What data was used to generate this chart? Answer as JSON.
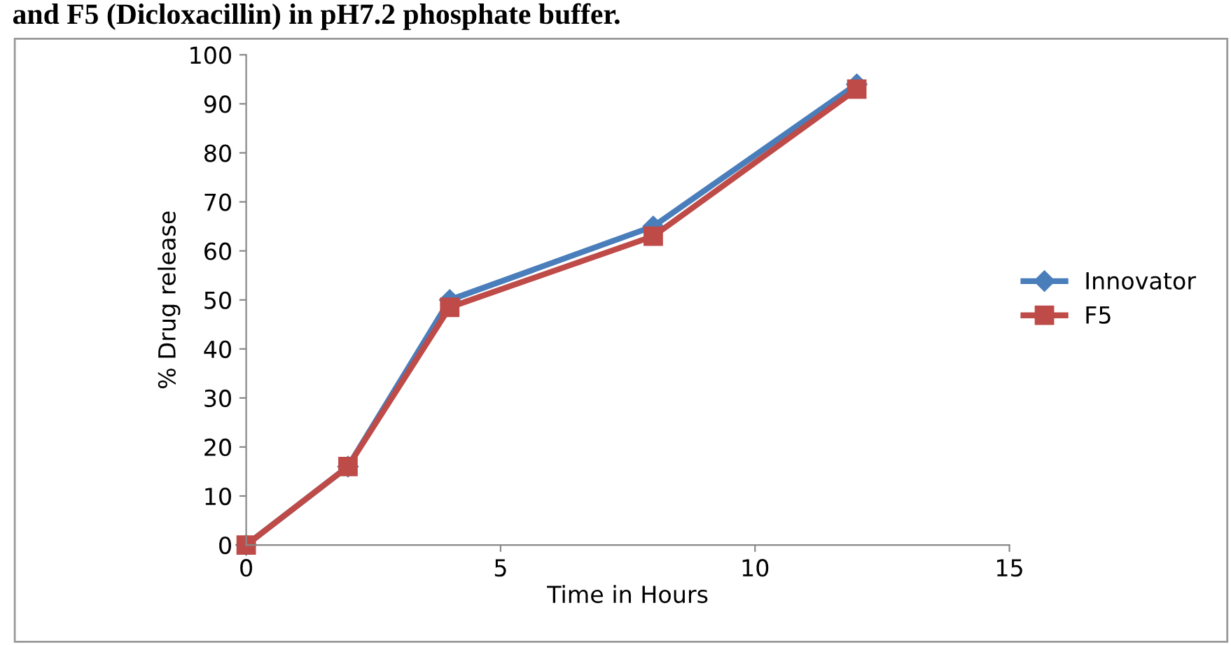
{
  "chart_data": {
    "type": "line",
    "title": "and F5 (Dicloxacillin) in pH7.2 phosphate buffer.",
    "xlabel": "Time in Hours",
    "ylabel": "% Drug release",
    "x": [
      0,
      2,
      4,
      8,
      12
    ],
    "series": [
      {
        "name": "Innovator",
        "color": "#4a7ebb",
        "marker": "diamond",
        "values": [
          0,
          16,
          50,
          65,
          94
        ]
      },
      {
        "name": "F5",
        "color": "#be4b48",
        "marker": "square",
        "values": [
          0,
          16,
          48.5,
          63,
          93
        ]
      }
    ],
    "xlim": [
      0,
      15
    ],
    "xticks": [
      0,
      5,
      10,
      15
    ],
    "ylim": [
      0,
      100
    ],
    "yticks": [
      0,
      10,
      20,
      30,
      40,
      50,
      60,
      70,
      80,
      90,
      100
    ],
    "grid": false,
    "legend": "right",
    "line_style": "solid"
  }
}
